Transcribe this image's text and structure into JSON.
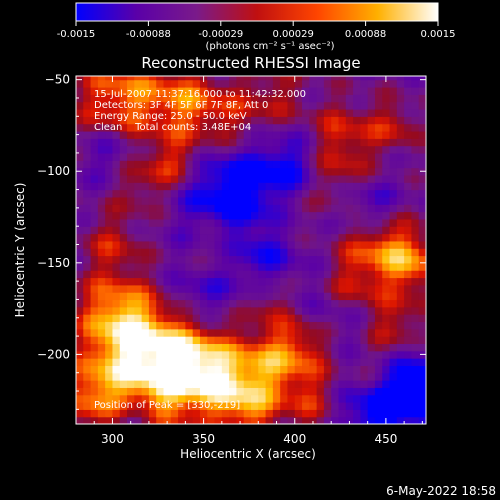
{
  "chart_data": {
    "type": "heatmap",
    "title": "Reconstructed RHESSI Image",
    "xlabel": "Heliocentric X (arcsec)",
    "ylabel": "Heliocentric Y (arcsec)",
    "xlim": [
      280,
      472
    ],
    "ylim": [
      -238,
      -48
    ],
    "x_ticks": [
      300,
      350,
      400,
      450
    ],
    "y_ticks": [
      -50,
      -100,
      -150,
      -200
    ],
    "colorbar": {
      "range": [
        -0.0015,
        0.0015
      ],
      "tick_labels": [
        "-0.0015",
        "-0.00088",
        "-0.00029",
        "0.00029",
        "0.00088",
        "0.0015"
      ],
      "units": "(photons cm⁻² s⁻¹ asec⁻²)",
      "colormap": [
        "#0000ff",
        "#5a00a8",
        "#7a1a8a",
        "#c01010",
        "#ff4500",
        "#ffb000",
        "#ffffff"
      ]
    },
    "annotations": [
      "15-Jul-2007 11:37:16.000 to 11:42:32.000",
      "Detectors: 3F 4F 5F 6F 7F 8F, Att 0",
      "Energy Range: 25.0 - 50.0 keV",
      "Clean    Total counts: 3.48E+04"
    ],
    "peak_label": "Position of Peak = [330,-219]",
    "footer_date": "6-May-2022 18:58"
  }
}
